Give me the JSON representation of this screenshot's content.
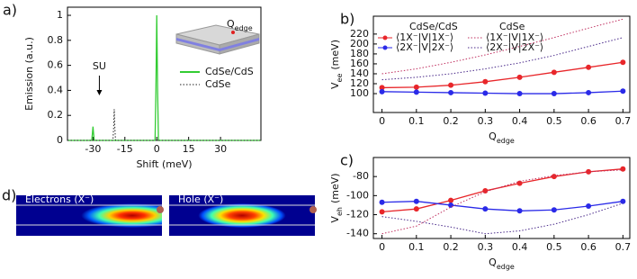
{
  "chart_data": [
    {
      "type": "line",
      "panel_label": "a)",
      "xlabel": "Shift (meV)",
      "ylabel": "Emission (a.u.)",
      "xlim": [
        -42,
        49
      ],
      "xticks": [
        -30,
        -15,
        0,
        15,
        30
      ],
      "ylim": [
        0,
        1.065
      ],
      "yticks": [
        0,
        0.2,
        0.4,
        0.6,
        0.8,
        1
      ],
      "legend": "right",
      "series": [
        {
          "name": "CdSe/CdS",
          "color": "#33cc33",
          "dash": false,
          "markers": false,
          "x": [
            -42,
            -30.6,
            -30.3,
            -30,
            -29.7,
            -29.4,
            -0.8,
            -0.4,
            0,
            0.4,
            0.8,
            49
          ],
          "values": [
            0,
            0,
            0.05,
            0.11,
            0.05,
            0,
            0,
            0.4,
            1,
            0.4,
            0,
            0
          ]
        },
        {
          "name": "CdSe",
          "color": "#222222",
          "dash": true,
          "markers": false,
          "x": [
            -42,
            -20.6,
            -20.3,
            -20,
            -19.7,
            -19.4,
            49
          ],
          "values": [
            0,
            0,
            0.1,
            0.25,
            0.1,
            0,
            0
          ]
        }
      ],
      "annotation": "SU",
      "annotation_x": -27,
      "inset_label": "Q",
      "inset_label_sub": "edge"
    },
    {
      "type": "line",
      "panel_label": "b)",
      "xlabel": "Q",
      "xlabel_sub": "edge",
      "ylabel": "V",
      "ylabel_sub": "ee",
      "ylabel_unit": "(meV)",
      "x": [
        0,
        0.1,
        0.2,
        0.3,
        0.4,
        0.5,
        0.6,
        0.7
      ],
      "xlim": [
        -0.025,
        0.72
      ],
      "xticks": [
        0,
        0.1,
        0.2,
        0.3,
        0.4,
        0.5,
        0.6,
        0.7
      ],
      "ylim": [
        62,
        256
      ],
      "yticks": [
        100,
        120,
        140,
        160,
        180,
        200,
        220
      ],
      "legend_groups": [
        "CdSe/CdS",
        "CdSe"
      ],
      "series": [
        {
          "name": "⟨1X⁻|V|1X⁻⟩",
          "group": 0,
          "color": "#e8262a",
          "dash": false,
          "markers": true,
          "values": [
            112,
            113,
            117,
            124,
            133,
            143,
            153,
            163
          ]
        },
        {
          "name": "⟨2X⁻|V|2X⁻⟩",
          "group": 0,
          "color": "#2a2ae8",
          "dash": false,
          "markers": true,
          "values": [
            104,
            103,
            102,
            101,
            100,
            100,
            102,
            105
          ]
        },
        {
          "name": "⟨1X⁻|V|1X⁻⟩",
          "group": 1,
          "color": "#c03060",
          "dash": true,
          "markers": false,
          "values": [
            140,
            150,
            163,
            178,
            195,
            213,
            232,
            250
          ]
        },
        {
          "name": "⟨2X⁻|V|2X⁻⟩",
          "group": 1,
          "color": "#4a2a8a",
          "dash": true,
          "markers": false,
          "values": [
            128,
            133,
            140,
            150,
            162,
            177,
            195,
            213
          ]
        }
      ]
    },
    {
      "type": "line",
      "panel_label": "c)",
      "xlabel": "Q",
      "xlabel_sub": "edge",
      "ylabel": "V",
      "ylabel_sub": "eh",
      "ylabel_unit": "(meV)",
      "x": [
        0,
        0.1,
        0.2,
        0.3,
        0.4,
        0.5,
        0.6,
        0.7
      ],
      "xlim": [
        -0.025,
        0.72
      ],
      "xticks": [
        0,
        0.1,
        0.2,
        0.3,
        0.4,
        0.5,
        0.6,
        0.7
      ],
      "ylim": [
        -145,
        -60
      ],
      "yticks": [
        -140,
        -120,
        -100,
        -80
      ],
      "series": [
        {
          "color": "#e8262a",
          "dash": false,
          "markers": true,
          "values": [
            -117,
            -114,
            -105,
            -95,
            -87,
            -80,
            -75,
            -72
          ]
        },
        {
          "color": "#2a2ae8",
          "dash": false,
          "markers": true,
          "values": [
            -107,
            -106,
            -110,
            -114,
            -116,
            -115,
            -111,
            -106
          ]
        },
        {
          "color": "#c03060",
          "dash": true,
          "markers": false,
          "values": [
            -140,
            -132,
            -112,
            -96,
            -85,
            -79,
            -75,
            -73
          ]
        },
        {
          "color": "#4a2a8a",
          "dash": true,
          "markers": false,
          "values": [
            -122,
            -127,
            -133,
            -140,
            -137,
            -130,
            -120,
            -108
          ]
        }
      ]
    }
  ],
  "images": {
    "panel_label": "d)",
    "panels": [
      {
        "title": "Electrons (X⁻)"
      },
      {
        "title": "Hole (X⁻)"
      }
    ]
  }
}
